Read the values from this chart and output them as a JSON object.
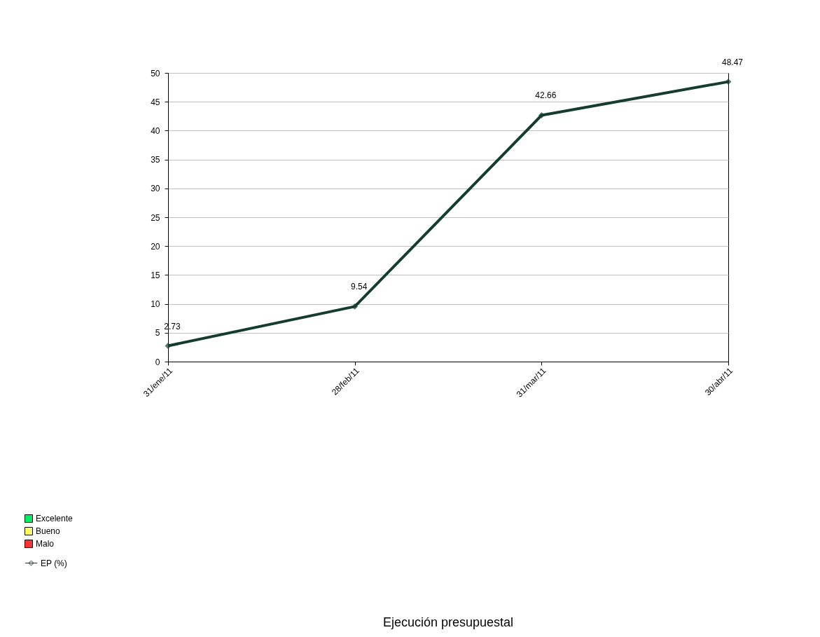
{
  "chart_data": {
    "type": "line",
    "title": "Ejecución presupuestal",
    "categories": [
      "31/ene/11",
      "28/feb/11",
      "31/mar/11",
      "30/abr/11"
    ],
    "series": [
      {
        "name": "Excelente",
        "type": "bar",
        "color": "#00ee66",
        "values": [
          null,
          null,
          null,
          null
        ]
      },
      {
        "name": "Bueno",
        "type": "bar",
        "color": "#ffff66",
        "values": [
          null,
          null,
          null,
          null
        ]
      },
      {
        "name": "Malo",
        "type": "bar",
        "color": "#ff3333",
        "values": [
          null,
          null,
          null,
          null
        ]
      },
      {
        "name": "EP (%)",
        "color": "#143d2e",
        "values": [
          2.73,
          9.54,
          42.66,
          48.47
        ]
      }
    ],
    "ylim": [
      0,
      50
    ],
    "yticks": [
      0,
      5,
      10,
      15,
      20,
      25,
      30,
      35,
      40,
      45,
      50
    ],
    "grid": "y",
    "legend": "bottom",
    "marker": "diamond",
    "line_style": "solid",
    "data_labels": true
  }
}
